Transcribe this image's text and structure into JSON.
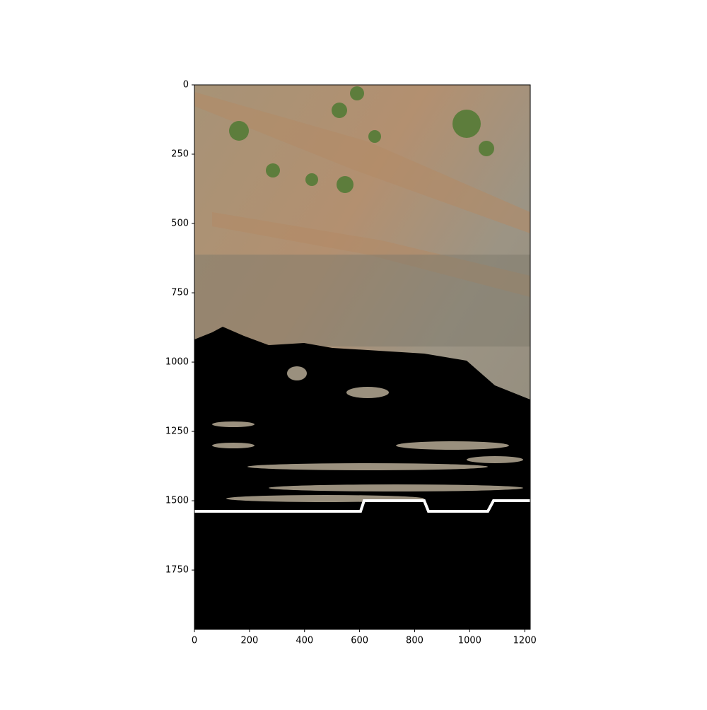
{
  "chart_data": {
    "type": "image",
    "xlim": [
      0,
      1220
    ],
    "ylim": [
      1964,
      0
    ],
    "xticks": [
      0,
      200,
      400,
      600,
      800,
      1000,
      1200
    ],
    "yticks": [
      0,
      250,
      500,
      750,
      1000,
      1250,
      1500,
      1750
    ]
  }
}
